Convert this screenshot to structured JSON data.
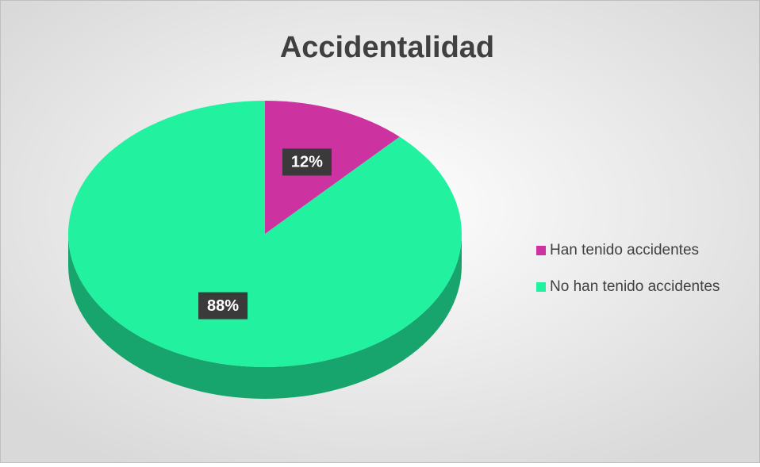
{
  "chart_data": {
    "type": "pie",
    "title": "Accidentalidad",
    "categories": [
      "Han tenido accidentes",
      "No han tenido accidentes"
    ],
    "values": [
      12,
      88
    ],
    "value_labels": [
      "12%",
      "88%"
    ],
    "colors": [
      "#cc33a0",
      "#22f2a0"
    ],
    "legend": "right"
  }
}
